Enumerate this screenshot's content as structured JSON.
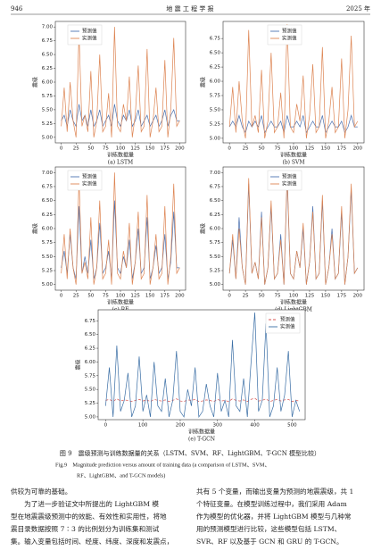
{
  "header": {
    "page": "946",
    "journal": "地 震 工 程 学 报",
    "year": "2025 年"
  },
  "chart_data": [
    {
      "type": "line",
      "subtitle": "(a) LSTM",
      "xlabel": "训练数据量",
      "ylabel": "震级",
      "legend": "upper left",
      "x": [
        0,
        5,
        10,
        15,
        20,
        25,
        30,
        35,
        40,
        45,
        50,
        55,
        60,
        65,
        70,
        75,
        80,
        85,
        90,
        95,
        100,
        105,
        110,
        115,
        120,
        125,
        130,
        135,
        140,
        145,
        150,
        155,
        160,
        165,
        170,
        175,
        180,
        185,
        190,
        195,
        200
      ],
      "series": [
        {
          "name": "预测值",
          "color": "#4c72b0",
          "values": [
            5.3,
            5.4,
            5.2,
            5.5,
            5.3,
            5.2,
            5.6,
            5.3,
            5.4,
            5.2,
            5.5,
            5.2,
            5.3,
            5.5,
            5.2,
            5.3,
            5.4,
            5.2,
            5.6,
            5.3,
            5.2,
            5.4,
            5.3,
            5.5,
            5.2,
            5.3,
            5.5,
            5.2,
            5.3,
            5.4,
            5.2,
            5.3,
            5.4,
            5.2,
            5.3,
            5.5,
            5.2,
            5.4,
            5.5,
            5.3,
            5.3
          ]
        },
        {
          "name": "实测值",
          "color": "#dd8452",
          "values": [
            5.2,
            5.9,
            5.1,
            6.0,
            5.3,
            5.0,
            6.9,
            5.2,
            5.4,
            5.1,
            6.2,
            5.0,
            5.3,
            6.5,
            5.1,
            5.2,
            5.8,
            5.0,
            7.0,
            5.2,
            5.1,
            5.6,
            5.3,
            6.1,
            5.0,
            5.4,
            6.3,
            5.1,
            5.2,
            6.6,
            5.0,
            5.3,
            5.9,
            5.1,
            5.2,
            6.4,
            5.0,
            5.5,
            6.8,
            5.2,
            5.3
          ]
        }
      ],
      "xlim": [
        -10,
        210
      ],
      "ylim": [
        4.9,
        7.1
      ],
      "xticks": [
        0,
        25,
        50,
        75,
        100,
        125,
        150,
        175,
        200
      ],
      "yticks": [
        {
          "value": 5,
          "label": "5.00"
        },
        {
          "value": 5.25,
          "label": "5.25"
        },
        {
          "value": 5.5,
          "label": "5.50"
        },
        {
          "value": 5.75,
          "label": "5.75"
        },
        {
          "value": 6,
          "label": "6.00"
        },
        {
          "value": 6.25,
          "label": "6.25"
        },
        {
          "value": 6.5,
          "label": "6.50"
        },
        {
          "value": 6.75,
          "label": "6.75"
        },
        {
          "value": 7,
          "label": "7.00"
        }
      ]
    },
    {
      "type": "line",
      "subtitle": "(b) SVM",
      "xlabel": "训练数据量",
      "ylabel": "震级",
      "legend": "upper center",
      "x": [
        0,
        5,
        10,
        15,
        20,
        25,
        30,
        35,
        40,
        45,
        50,
        55,
        60,
        65,
        70,
        75,
        80,
        85,
        90,
        95,
        100,
        105,
        110,
        115,
        120,
        125,
        130,
        135,
        140,
        145,
        150,
        155,
        160,
        165,
        170,
        175,
        180,
        185,
        190,
        195,
        200
      ],
      "series": [
        {
          "name": "预测值",
          "color": "#4c72b0",
          "values": [
            5.2,
            5.3,
            5.2,
            5.4,
            5.2,
            5.1,
            5.3,
            5.2,
            5.3,
            5.2,
            5.4,
            5.1,
            5.2,
            5.3,
            5.2,
            5.2,
            5.3,
            5.1,
            5.4,
            5.2,
            5.2,
            5.3,
            5.2,
            5.4,
            5.1,
            5.2,
            5.3,
            5.2,
            5.2,
            5.4,
            5.1,
            5.2,
            5.3,
            5.2,
            5.2,
            5.3,
            5.1,
            5.2,
            5.4,
            5.2,
            5.2
          ]
        },
        {
          "name": "实测值",
          "color": "#dd8452",
          "values": [
            5.2,
            5.9,
            5.1,
            6.0,
            5.3,
            5.0,
            6.9,
            5.2,
            5.4,
            5.1,
            6.2,
            5.0,
            5.3,
            6.5,
            5.1,
            5.2,
            5.8,
            5.0,
            7.0,
            5.2,
            5.1,
            5.6,
            5.3,
            6.1,
            5.0,
            5.4,
            6.3,
            5.1,
            5.2,
            6.6,
            5.0,
            5.3,
            5.9,
            5.1,
            5.2,
            6.4,
            5.0,
            5.5,
            6.8,
            5.2,
            5.3
          ]
        }
      ],
      "xlim": [
        -10,
        210
      ],
      "ylim": [
        4.92,
        7.05
      ],
      "xticks": [
        0,
        25,
        50,
        75,
        100,
        125,
        150,
        175,
        200
      ],
      "yticks": [
        {
          "value": 5,
          "label": "5.00"
        },
        {
          "value": 5.25,
          "label": "5.25"
        },
        {
          "value": 5.5,
          "label": "5.50"
        },
        {
          "value": 5.75,
          "label": "5.75"
        },
        {
          "value": 6,
          "label": "6.00"
        },
        {
          "value": 6.25,
          "label": "6.25"
        },
        {
          "value": 6.5,
          "label": "6.50"
        },
        {
          "value": 6.75,
          "label": "6.75"
        }
      ]
    },
    {
      "type": "line",
      "subtitle": "(c) RF",
      "xlabel": "训练数据量",
      "ylabel": "震级",
      "legend": "upper left",
      "x": [
        0,
        5,
        10,
        15,
        20,
        25,
        30,
        35,
        40,
        45,
        50,
        55,
        60,
        65,
        70,
        75,
        80,
        85,
        90,
        95,
        100,
        105,
        110,
        115,
        120,
        125,
        130,
        135,
        140,
        145,
        150,
        155,
        160,
        165,
        170,
        175,
        180,
        185,
        190,
        195,
        200
      ],
      "series": [
        {
          "name": "预测值",
          "color": "#4c72b0",
          "values": [
            5.3,
            5.6,
            5.2,
            5.9,
            5.3,
            5.1,
            6.4,
            5.2,
            5.5,
            5.2,
            5.8,
            5.1,
            5.3,
            6.1,
            5.2,
            5.3,
            5.6,
            5.1,
            6.5,
            5.3,
            5.2,
            5.5,
            5.3,
            5.8,
            5.1,
            5.4,
            6.0,
            5.2,
            5.3,
            6.2,
            5.1,
            5.3,
            5.7,
            5.2,
            5.3,
            5.9,
            5.1,
            5.4,
            6.3,
            5.3,
            5.3
          ]
        },
        {
          "name": "实测值",
          "color": "#dd8452",
          "values": [
            5.2,
            5.9,
            5.1,
            6.0,
            5.3,
            5.0,
            6.9,
            5.2,
            5.4,
            5.1,
            6.2,
            5.0,
            5.3,
            6.5,
            5.1,
            5.2,
            5.8,
            5.0,
            7.0,
            5.2,
            5.1,
            5.6,
            5.3,
            6.1,
            5.0,
            5.4,
            6.3,
            5.1,
            5.2,
            6.6,
            5.0,
            5.3,
            5.9,
            5.1,
            5.2,
            6.4,
            5.0,
            5.5,
            6.8,
            5.2,
            5.3
          ]
        }
      ],
      "xlim": [
        -10,
        210
      ],
      "ylim": [
        4.9,
        7.1
      ],
      "xticks": [
        0,
        25,
        50,
        75,
        100,
        125,
        150,
        175,
        200
      ],
      "yticks": [
        {
          "value": 5,
          "label": "5.00"
        },
        {
          "value": 5.25,
          "label": "5.25"
        },
        {
          "value": 5.5,
          "label": "5.50"
        },
        {
          "value": 5.75,
          "label": "5.75"
        },
        {
          "value": 6,
          "label": "6.00"
        },
        {
          "value": 6.25,
          "label": "6.25"
        },
        {
          "value": 6.5,
          "label": "6.50"
        },
        {
          "value": 6.75,
          "label": "6.75"
        },
        {
          "value": 7,
          "label": "7.00"
        }
      ]
    },
    {
      "type": "line",
      "subtitle": "(d) LightGBM",
      "xlabel": "训练数据量",
      "ylabel": "震级",
      "legend": "upper center",
      "x": [
        0,
        5,
        10,
        15,
        20,
        25,
        30,
        35,
        40,
        45,
        50,
        55,
        60,
        65,
        70,
        75,
        80,
        85,
        90,
        95,
        100,
        105,
        110,
        115,
        120,
        125,
        130,
        135,
        140,
        145,
        150,
        155,
        160,
        165,
        170,
        175,
        180,
        185,
        190,
        195,
        200
      ],
      "series": [
        {
          "name": "预测值",
          "color": "#4c72b0",
          "values": [
            5.2,
            5.8,
            5.1,
            6.2,
            5.3,
            5.0,
            6.8,
            5.2,
            5.4,
            5.1,
            6.3,
            5.0,
            5.3,
            6.4,
            5.1,
            5.2,
            5.9,
            5.0,
            6.9,
            5.2,
            5.1,
            5.6,
            5.3,
            6.0,
            5.0,
            5.4,
            6.4,
            5.1,
            5.2,
            6.5,
            5.0,
            5.3,
            6.0,
            5.1,
            5.2,
            6.3,
            5.0,
            5.5,
            6.7,
            5.2,
            5.3
          ]
        },
        {
          "name": "实测值",
          "color": "#dd8452",
          "values": [
            5.2,
            5.9,
            5.1,
            6.0,
            5.3,
            5.0,
            6.9,
            5.2,
            5.4,
            5.1,
            6.2,
            5.0,
            5.3,
            6.5,
            5.1,
            5.2,
            5.8,
            5.0,
            7.0,
            5.2,
            5.1,
            5.6,
            5.3,
            6.1,
            5.0,
            5.4,
            6.3,
            5.1,
            5.2,
            6.6,
            5.0,
            5.3,
            5.9,
            5.1,
            5.2,
            6.4,
            5.0,
            5.5,
            6.8,
            5.2,
            5.3
          ]
        }
      ],
      "xlim": [
        -10,
        210
      ],
      "ylim": [
        4.9,
        7.1
      ],
      "xticks": [
        0,
        25,
        50,
        75,
        100,
        125,
        150,
        175,
        200
      ],
      "yticks": [
        {
          "value": 5,
          "label": "5.00"
        },
        {
          "value": 5.25,
          "label": "5.25"
        },
        {
          "value": 5.5,
          "label": "5.50"
        },
        {
          "value": 5.75,
          "label": "5.75"
        },
        {
          "value": 6,
          "label": "6.00"
        },
        {
          "value": 6.25,
          "label": "6.25"
        },
        {
          "value": 6.5,
          "label": "6.50"
        },
        {
          "value": 6.75,
          "label": "6.75"
        },
        {
          "value": 7,
          "label": "7.00"
        }
      ]
    },
    {
      "type": "line",
      "subtitle": "(e) T-GCN",
      "xlabel": "训练数据量",
      "ylabel": "震级",
      "legend": "upper right",
      "x": [
        0,
        10,
        20,
        30,
        40,
        50,
        60,
        70,
        80,
        90,
        100,
        110,
        120,
        130,
        140,
        150,
        160,
        170,
        180,
        190,
        200,
        210,
        220,
        230,
        240,
        250,
        260,
        270,
        280,
        290,
        300,
        310,
        320,
        330,
        340,
        350,
        360,
        370,
        380,
        390,
        400,
        410,
        420,
        430,
        440,
        450,
        460,
        470,
        480,
        490,
        500,
        510,
        520
      ],
      "series": [
        {
          "name": "预测值",
          "color": "#d9534f",
          "linestyle": "dashed",
          "values": [
            5.3,
            5.32,
            5.28,
            5.33,
            5.29,
            5.31,
            5.3,
            5.28,
            5.3,
            5.32,
            5.29,
            5.31,
            5.28,
            5.32,
            5.3,
            5.29,
            5.31,
            5.28,
            5.3,
            5.33,
            5.29,
            5.28,
            5.31,
            5.3,
            5.32,
            5.28,
            5.29,
            5.31,
            5.3,
            5.28,
            5.32,
            5.29,
            5.3,
            5.28,
            5.33,
            5.3,
            5.29,
            5.31,
            5.28,
            5.32,
            5.34,
            5.29,
            5.3,
            5.33,
            5.28,
            5.3,
            5.32,
            5.29,
            5.31,
            5.32,
            5.28,
            5.3,
            5.29
          ]
        },
        {
          "name": "实测值",
          "color": "#3a6ea5",
          "values": [
            5.2,
            5.9,
            5.0,
            6.3,
            5.1,
            5.3,
            5.8,
            5.0,
            5.2,
            6.1,
            5.1,
            5.4,
            5.0,
            6.0,
            5.2,
            5.1,
            5.7,
            5.0,
            5.3,
            6.2,
            5.1,
            5.0,
            5.5,
            5.2,
            5.9,
            5.0,
            5.1,
            5.6,
            5.2,
            5.0,
            5.8,
            5.1,
            5.3,
            5.0,
            6.4,
            5.2,
            5.1,
            5.7,
            5.0,
            6.0,
            6.9,
            5.1,
            5.3,
            6.7,
            5.0,
            5.2,
            5.9,
            5.1,
            5.4,
            6.2,
            5.0,
            5.3,
            5.1
          ]
        }
      ],
      "xlim": [
        -20,
        535
      ],
      "ylim": [
        4.95,
        6.95
      ],
      "xticks": [
        0,
        100,
        200,
        300,
        400,
        500
      ],
      "yticks": [
        {
          "value": 5,
          "label": "5.00"
        },
        {
          "value": 5.25,
          "label": "5.25"
        },
        {
          "value": 5.5,
          "label": "5.50"
        },
        {
          "value": 5.75,
          "label": "5.75"
        },
        {
          "value": 6,
          "label": "6.00"
        },
        {
          "value": 6.25,
          "label": "6.25"
        },
        {
          "value": 6.5,
          "label": "6.50"
        },
        {
          "value": 6.75,
          "label": "6.75"
        }
      ]
    }
  ],
  "caption": {
    "zh": "图 9　震级预测与训练数据量的关系（LSTM、SVM、RF、LightGBM、T-GCN 模型比较）",
    "en": [
      "Fig.9　Magnitude prediction versus amount of training data (a comparison of LSTM、SVM、",
      "RF、LightGBM、and T-GCN models)"
    ]
  },
  "body": {
    "left": [
      "供较为可靠的基础。",
      "　　为了进一步验证文中所提出的 LightGBM 模",
      "型在地震震级预测中的效能、有效性和实用性，将地",
      "震目录数据按照 7∶3 的比例划分为训练集和测试",
      "集。输入变量包括时间、经度、纬度、深度和发震点，"
    ],
    "right": [
      "共有 5 个变量，而输出变量为预测的地震震级，共 1",
      "个特征变量。在模型训练过程中，我们采用 Adam",
      "作为模型的优化器，并将 LightGBM 模型与几种常",
      "用的预测模型进行比较，这些模型包括 LSTM、",
      "SVR、RF 以及基于 GCN 和 GRU 的 T-GCN。"
    ]
  }
}
